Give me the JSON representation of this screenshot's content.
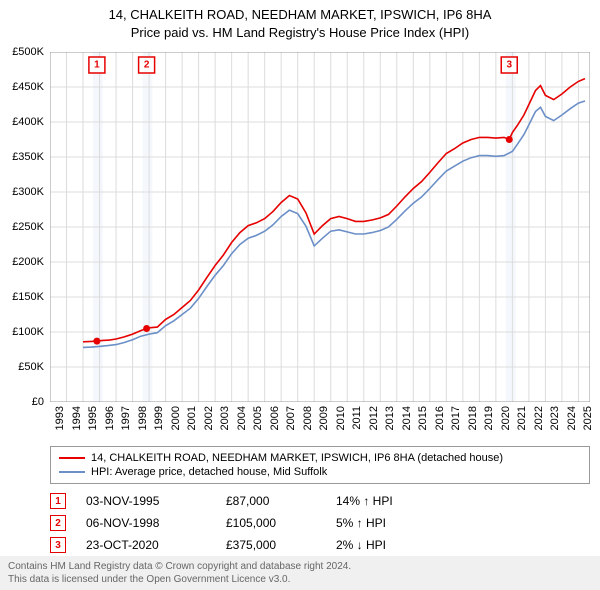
{
  "title_line1": "14, CHALKEITH ROAD, NEEDHAM MARKET, IPSWICH, IP6 8HA",
  "title_line2": "Price paid vs. HM Land Registry's House Price Index (HPI)",
  "chart": {
    "type": "line",
    "background_color": "#ffffff",
    "plot_bg": "#ffffff",
    "grid_color": "#dcdcdc",
    "axis_color": "#999999",
    "x_years": [
      1993,
      1994,
      1995,
      1996,
      1997,
      1998,
      1999,
      2000,
      2001,
      2002,
      2003,
      2004,
      2005,
      2006,
      2007,
      2008,
      2009,
      2010,
      2011,
      2012,
      2013,
      2014,
      2015,
      2016,
      2017,
      2018,
      2019,
      2020,
      2021,
      2022,
      2023,
      2024,
      2025
    ],
    "x_min": 1993,
    "x_max": 2025.7,
    "y_min": 0,
    "y_max": 500000,
    "y_tick_step": 50000,
    "y_tick_labels": [
      "£0",
      "£50K",
      "£100K",
      "£150K",
      "£200K",
      "£250K",
      "£300K",
      "£350K",
      "£400K",
      "£450K",
      "£500K"
    ],
    "highlight_bands": [
      {
        "x_start": 1995.6,
        "x_end": 1996.2,
        "color": "#e6f0fa"
      },
      {
        "x_start": 1998.6,
        "x_end": 1999.2,
        "color": "#e6f0fa"
      },
      {
        "x_start": 2020.6,
        "x_end": 2021.2,
        "color": "#e6f0fa"
      }
    ],
    "series": [
      {
        "name": "property",
        "color": "#e60000",
        "width": 1.6,
        "points": [
          [
            1995.0,
            86000
          ],
          [
            1995.5,
            86500
          ],
          [
            1995.84,
            87000
          ],
          [
            1996.2,
            88000
          ],
          [
            1996.6,
            88500
          ],
          [
            1997.0,
            90000
          ],
          [
            1997.5,
            93000
          ],
          [
            1998.0,
            97000
          ],
          [
            1998.5,
            102000
          ],
          [
            1998.85,
            105000
          ],
          [
            1999.0,
            106000
          ],
          [
            1999.5,
            107000
          ],
          [
            2000.0,
            118000
          ],
          [
            2000.5,
            125000
          ],
          [
            2001.0,
            135000
          ],
          [
            2001.5,
            145000
          ],
          [
            2002.0,
            160000
          ],
          [
            2002.5,
            178000
          ],
          [
            2003.0,
            195000
          ],
          [
            2003.5,
            210000
          ],
          [
            2004.0,
            228000
          ],
          [
            2004.5,
            242000
          ],
          [
            2005.0,
            252000
          ],
          [
            2005.5,
            256000
          ],
          [
            2006.0,
            262000
          ],
          [
            2006.5,
            272000
          ],
          [
            2007.0,
            285000
          ],
          [
            2007.5,
            295000
          ],
          [
            2008.0,
            290000
          ],
          [
            2008.5,
            270000
          ],
          [
            2009.0,
            240000
          ],
          [
            2009.5,
            252000
          ],
          [
            2010.0,
            262000
          ],
          [
            2010.5,
            265000
          ],
          [
            2011.0,
            262000
          ],
          [
            2011.5,
            258000
          ],
          [
            2012.0,
            258000
          ],
          [
            2012.5,
            260000
          ],
          [
            2013.0,
            263000
          ],
          [
            2013.5,
            268000
          ],
          [
            2014.0,
            280000
          ],
          [
            2014.5,
            293000
          ],
          [
            2015.0,
            305000
          ],
          [
            2015.5,
            315000
          ],
          [
            2016.0,
            328000
          ],
          [
            2016.5,
            342000
          ],
          [
            2017.0,
            355000
          ],
          [
            2017.5,
            362000
          ],
          [
            2018.0,
            370000
          ],
          [
            2018.5,
            375000
          ],
          [
            2019.0,
            378000
          ],
          [
            2019.5,
            378000
          ],
          [
            2020.0,
            377000
          ],
          [
            2020.5,
            378000
          ],
          [
            2020.81,
            375000
          ],
          [
            2021.0,
            385000
          ],
          [
            2021.3,
            395000
          ],
          [
            2021.7,
            410000
          ],
          [
            2022.0,
            425000
          ],
          [
            2022.4,
            445000
          ],
          [
            2022.7,
            452000
          ],
          [
            2023.0,
            438000
          ],
          [
            2023.5,
            432000
          ],
          [
            2024.0,
            440000
          ],
          [
            2024.5,
            450000
          ],
          [
            2025.0,
            458000
          ],
          [
            2025.4,
            462000
          ]
        ]
      },
      {
        "name": "hpi",
        "color": "#6b8fc7",
        "width": 1.4,
        "points": [
          [
            1995.0,
            78000
          ],
          [
            1995.5,
            78500
          ],
          [
            1996.0,
            79500
          ],
          [
            1996.5,
            80500
          ],
          [
            1997.0,
            82000
          ],
          [
            1997.5,
            85000
          ],
          [
            1998.0,
            89000
          ],
          [
            1998.5,
            94000
          ],
          [
            1999.0,
            97000
          ],
          [
            1999.5,
            99000
          ],
          [
            2000.0,
            109000
          ],
          [
            2000.5,
            116000
          ],
          [
            2001.0,
            125000
          ],
          [
            2001.5,
            134000
          ],
          [
            2002.0,
            148000
          ],
          [
            2002.5,
            165000
          ],
          [
            2003.0,
            181000
          ],
          [
            2003.5,
            195000
          ],
          [
            2004.0,
            212000
          ],
          [
            2004.5,
            225000
          ],
          [
            2005.0,
            234000
          ],
          [
            2005.5,
            238000
          ],
          [
            2006.0,
            244000
          ],
          [
            2006.5,
            253000
          ],
          [
            2007.0,
            265000
          ],
          [
            2007.5,
            274000
          ],
          [
            2008.0,
            269000
          ],
          [
            2008.5,
            251000
          ],
          [
            2009.0,
            223000
          ],
          [
            2009.5,
            234000
          ],
          [
            2010.0,
            244000
          ],
          [
            2010.5,
            246000
          ],
          [
            2011.0,
            243000
          ],
          [
            2011.5,
            240000
          ],
          [
            2012.0,
            240000
          ],
          [
            2012.5,
            242000
          ],
          [
            2013.0,
            245000
          ],
          [
            2013.5,
            250000
          ],
          [
            2014.0,
            261000
          ],
          [
            2014.5,
            273000
          ],
          [
            2015.0,
            284000
          ],
          [
            2015.5,
            293000
          ],
          [
            2016.0,
            305000
          ],
          [
            2016.5,
            318000
          ],
          [
            2017.0,
            330000
          ],
          [
            2017.5,
            337000
          ],
          [
            2018.0,
            344000
          ],
          [
            2018.5,
            349000
          ],
          [
            2019.0,
            352000
          ],
          [
            2019.5,
            352000
          ],
          [
            2020.0,
            351000
          ],
          [
            2020.5,
            352000
          ],
          [
            2021.0,
            358000
          ],
          [
            2021.3,
            368000
          ],
          [
            2021.7,
            382000
          ],
          [
            2022.0,
            396000
          ],
          [
            2022.4,
            415000
          ],
          [
            2022.7,
            421000
          ],
          [
            2023.0,
            408000
          ],
          [
            2023.5,
            402000
          ],
          [
            2024.0,
            410000
          ],
          [
            2024.5,
            419000
          ],
          [
            2025.0,
            427000
          ],
          [
            2025.4,
            430000
          ]
        ]
      }
    ],
    "markers": [
      {
        "n": "1",
        "x": 1995.84,
        "y": 87000,
        "color": "#e60000"
      },
      {
        "n": "2",
        "x": 1998.85,
        "y": 105000,
        "color": "#e60000"
      },
      {
        "n": "3",
        "x": 2020.81,
        "y": 375000,
        "color": "#e60000"
      }
    ]
  },
  "legend": {
    "rows": [
      {
        "color": "#e60000",
        "label": "14, CHALKEITH ROAD, NEEDHAM MARKET, IPSWICH, IP6 8HA (detached house)"
      },
      {
        "color": "#6b8fc7",
        "label": "HPI: Average price, detached house, Mid Suffolk"
      }
    ]
  },
  "marker_table": [
    {
      "n": "1",
      "date": "03-NOV-1995",
      "price": "£87,000",
      "delta": "14% ↑ HPI",
      "color": "#e60000"
    },
    {
      "n": "2",
      "date": "06-NOV-1998",
      "price": "£105,000",
      "delta": "5% ↑ HPI",
      "color": "#e60000"
    },
    {
      "n": "3",
      "date": "23-OCT-2020",
      "price": "£375,000",
      "delta": "2% ↓ HPI",
      "color": "#e60000"
    }
  ],
  "footer_line1": "Contains HM Land Registry data © Crown copyright and database right 2024.",
  "footer_line2": "This data is licensed under the Open Government Licence v3.0."
}
